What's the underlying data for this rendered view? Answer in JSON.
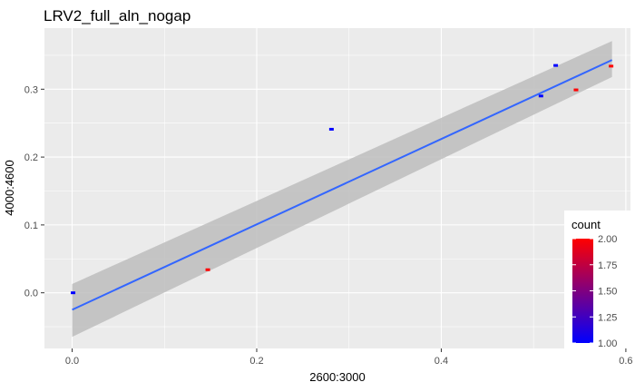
{
  "chart_data": {
    "type": "scatter",
    "title": "LRV2_full_aln_nogap",
    "xlabel": "2600:3000",
    "ylabel": "4000:4600",
    "xlim": [
      -0.03,
      0.605
    ],
    "ylim": [
      -0.082,
      0.39
    ],
    "x_ticks": [
      0.0,
      0.2,
      0.4,
      0.6
    ],
    "x_tick_labels": [
      "0.0",
      "0.2",
      "0.4",
      "0.6"
    ],
    "y_ticks": [
      0.0,
      0.1,
      0.2,
      0.3
    ],
    "y_tick_labels": [
      "0.0",
      "0.1",
      "0.2",
      "0.3"
    ],
    "grid": true,
    "legend": {
      "title": "count",
      "position": "bottom-right",
      "min": 1.0,
      "max": 2.0,
      "ticks": [
        1.0,
        1.25,
        1.5,
        1.75,
        2.0
      ],
      "tick_labels": [
        "1.00",
        "1.25",
        "1.50",
        "1.75",
        "2.00"
      ],
      "color_low": "#0000ff",
      "color_high": "#ff0000"
    },
    "points": [
      {
        "x": 0.001,
        "y": 0.0,
        "count": 1
      },
      {
        "x": 0.147,
        "y": 0.034,
        "count": 2
      },
      {
        "x": 0.281,
        "y": 0.241,
        "count": 1
      },
      {
        "x": 0.508,
        "y": 0.29,
        "count": 1
      },
      {
        "x": 0.524,
        "y": 0.335,
        "count": 1
      },
      {
        "x": 0.546,
        "y": 0.299,
        "count": 2
      },
      {
        "x": 0.584,
        "y": 0.334,
        "count": 2
      }
    ],
    "smooth": {
      "method": "lm",
      "x": [
        0.0,
        0.585
      ],
      "y": [
        -0.025,
        0.343
      ],
      "ci_lower": [
        -0.065,
        0.318
      ],
      "ci_upper": [
        0.013,
        0.371
      ],
      "line_color": "#3366ff",
      "ribbon_color": "#bdbdbd"
    },
    "panel_background": "#ebebeb",
    "grid_color": "#ffffff"
  }
}
